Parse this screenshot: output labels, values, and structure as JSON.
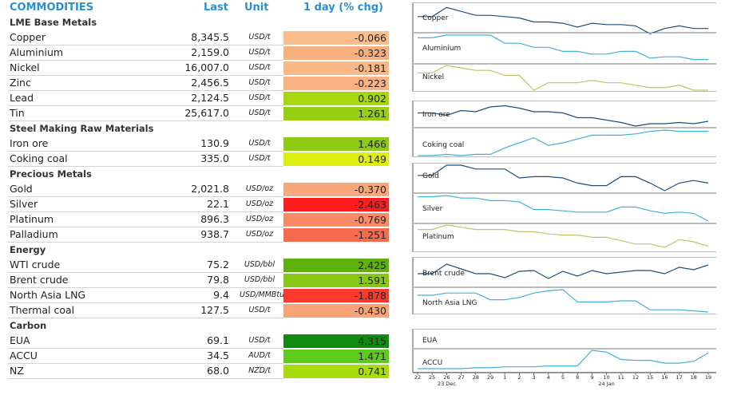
{
  "header": {
    "title": "COMMODITIES",
    "last": "Last",
    "unit": "Unit",
    "change": "1 day (% chg)"
  },
  "sections": [
    {
      "title": "LME Base Metals",
      "items": [
        {
          "name": "Copper",
          "last": "8,345.5",
          "unit": "USD/t",
          "change": "-0.066",
          "color": "#fbbd8c"
        },
        {
          "name": "Aluminium",
          "last": "2,159.0",
          "unit": "USD/t",
          "change": "-0.323",
          "color": "#f9ae80"
        },
        {
          "name": "Nickel",
          "last": "16,007.0",
          "unit": "USD/t",
          "change": "-0.181",
          "color": "#fbb887"
        },
        {
          "name": "Zinc",
          "last": "2,456.5",
          "unit": "USD/t",
          "change": "-0.223",
          "color": "#fab283"
        },
        {
          "name": "Lead",
          "last": "2,124.5",
          "unit": "USD/t",
          "change": "0.902",
          "color": "#a6d70f"
        },
        {
          "name": "Tin",
          "last": "25,617.0",
          "unit": "USD/t",
          "change": "1.261",
          "color": "#97cf12"
        }
      ]
    },
    {
      "title": "Steel Making Raw Materials",
      "items": [
        {
          "name": "Iron ore",
          "last": "130.9",
          "unit": "USD/t",
          "change": "1.466",
          "color": "#8dca14"
        },
        {
          "name": "Coking coal",
          "last": "335.0",
          "unit": "USD/t",
          "change": "0.149",
          "color": "#dcef11"
        }
      ]
    },
    {
      "title": "Precious Metals",
      "items": [
        {
          "name": "Gold",
          "last": "2,021.8",
          "unit": "USD/oz",
          "change": "-0.370",
          "color": "#f9a87b"
        },
        {
          "name": "Silver",
          "last": "22.1",
          "unit": "USD/oz",
          "change": "-2.463",
          "color": "#ff1c1c"
        },
        {
          "name": "Platinum",
          "last": "896.3",
          "unit": "USD/oz",
          "change": "-0.769",
          "color": "#fa8a66"
        },
        {
          "name": "Palladium",
          "last": "938.7",
          "unit": "USD/oz",
          "change": "-1.251",
          "color": "#f66a4e"
        }
      ]
    },
    {
      "title": "Energy",
      "items": [
        {
          "name": "WTI crude",
          "last": "75.2",
          "unit": "USD/bbl",
          "change": "2.425",
          "color": "#5fb10e"
        },
        {
          "name": "Brent crude",
          "last": "79.8",
          "unit": "USD/bbl",
          "change": "1.591",
          "color": "#86c814"
        },
        {
          "name": "North Asia LNG",
          "last": "9.4",
          "unit": "USD/MMBtu",
          "change": "-1.878",
          "color": "#fb3a2c"
        },
        {
          "name": "Thermal coal",
          "last": "127.5",
          "unit": "USD/t",
          "change": "-0.430",
          "color": "#f9a478"
        }
      ]
    },
    {
      "title": "Carbon",
      "items": [
        {
          "name": "EUA",
          "last": "69.1",
          "unit": "USD/t",
          "change": "4.315",
          "color": "#118a11"
        },
        {
          "name": "ACCU",
          "last": "34.5",
          "unit": "AUD/t",
          "change": "1.471",
          "color": "#5dca1c"
        },
        {
          "name": "NZ",
          "last": "68.0",
          "unit": "NZD/t",
          "change": "0.741",
          "color": "#a8dc0f"
        }
      ]
    }
  ],
  "chart_data": {
    "type": "line",
    "x": [
      "22",
      "25",
      "26",
      "27",
      "28",
      "29",
      "1",
      "2",
      "3",
      "4",
      "5",
      "8",
      "9",
      "10",
      "11",
      "12",
      "15",
      "16",
      "17",
      "18",
      "19"
    ],
    "x_groups": [
      {
        "label": "23 Dec",
        "at": "26"
      },
      {
        "label": "24 Jan",
        "at": "10"
      }
    ],
    "panels": [
      {
        "label": "Copper",
        "color": "#1f4e79",
        "values": [
          0.55,
          0.55,
          0.9,
          0.75,
          0.6,
          0.6,
          0.55,
          0.5,
          0.35,
          0.35,
          0.3,
          0.15,
          0.3,
          0.25,
          0.25,
          0.2,
          -0.1,
          0.1,
          0.2,
          0.1,
          0.1
        ]
      },
      {
        "label": "Aluminium",
        "color": "#41b1d8",
        "values": [
          0.9,
          0.9,
          1.0,
          1.0,
          1.0,
          1.0,
          0.7,
          0.7,
          0.55,
          0.55,
          0.4,
          0.4,
          0.3,
          0.3,
          0.4,
          0.4,
          0.15,
          0.2,
          0.2,
          0.1,
          0.1
        ]
      },
      {
        "label": "Nickel",
        "color": "#c3c16c",
        "values": [
          0.7,
          0.7,
          1.0,
          0.9,
          0.8,
          0.8,
          0.6,
          0.6,
          0.0,
          0.3,
          0.3,
          0.3,
          0.4,
          0.3,
          0.3,
          0.2,
          0.1,
          0.1,
          0.2,
          0.0,
          0.0
        ]
      },
      {
        "label": "Iron ore",
        "color": "#1f4e79",
        "values": [
          0.55,
          0.55,
          0.45,
          0.65,
          0.6,
          0.8,
          0.85,
          0.75,
          0.6,
          0.6,
          0.55,
          0.35,
          0.35,
          0.25,
          0.15,
          0.0,
          0.1,
          0.1,
          0.15,
          0.1,
          0.2
        ]
      },
      {
        "label": "Coking coal",
        "color": "#41b1d8",
        "values": [
          0.0,
          0.0,
          0.05,
          0.0,
          0.05,
          0.05,
          0.3,
          0.5,
          0.7,
          0.4,
          0.5,
          0.65,
          0.8,
          0.8,
          0.8,
          0.85,
          0.95,
          1.0,
          0.95,
          0.95,
          0.95
        ]
      },
      {
        "label": "Gold",
        "color": "#1f4e79",
        "values": [
          0.6,
          0.6,
          1.0,
          1.0,
          0.85,
          0.85,
          0.85,
          0.5,
          0.55,
          0.55,
          0.5,
          0.3,
          0.2,
          0.2,
          0.55,
          0.55,
          0.3,
          0.0,
          0.3,
          0.4,
          0.3
        ]
      },
      {
        "label": "Silver",
        "color": "#41b1d8",
        "values": [
          0.95,
          0.95,
          1.0,
          0.9,
          0.9,
          0.8,
          0.8,
          0.75,
          0.45,
          0.45,
          0.4,
          0.35,
          0.35,
          0.35,
          0.55,
          0.55,
          0.4,
          0.3,
          0.35,
          0.3,
          0.0
        ]
      },
      {
        "label": "Platinum",
        "color": "#c3c16c",
        "values": [
          0.8,
          0.8,
          1.0,
          0.9,
          0.8,
          0.8,
          0.8,
          0.7,
          0.7,
          0.6,
          0.55,
          0.55,
          0.45,
          0.45,
          0.3,
          0.15,
          0.15,
          0.0,
          0.35,
          0.25,
          0.05
        ]
      },
      {
        "label": "Brent crude",
        "color": "#1f4e79",
        "values": [
          0.3,
          0.3,
          0.9,
          0.6,
          0.3,
          0.3,
          0.05,
          0.45,
          0.5,
          0.0,
          0.45,
          0.15,
          0.5,
          0.3,
          0.4,
          0.5,
          0.5,
          0.3,
          0.7,
          0.55,
          0.85
        ]
      },
      {
        "label": "North Asia LNG",
        "color": "#41b1d8",
        "values": [
          0.75,
          0.75,
          0.85,
          0.85,
          0.85,
          0.55,
          0.55,
          0.65,
          0.85,
          0.95,
          1.0,
          0.45,
          0.45,
          0.45,
          0.5,
          0.5,
          0.1,
          0.1,
          0.1,
          0.05,
          0.0
        ]
      },
      {
        "label": "EUA",
        "color": "#1f4e79",
        "values": []
      },
      {
        "label": "ACCU",
        "color": "#41b1d8",
        "values": [
          0.0,
          0.0,
          0.0,
          0.0,
          0.05,
          0.05,
          0.1,
          0.1,
          0.1,
          0.15,
          0.15,
          0.15,
          1.0,
          0.9,
          0.5,
          0.45,
          0.45,
          0.3,
          0.3,
          0.4,
          0.85
        ]
      }
    ]
  }
}
